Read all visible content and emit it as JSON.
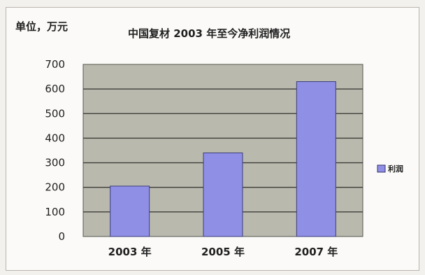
{
  "chart_data": {
    "type": "bar",
    "title": "中国复材 2003 年至今净利润情况",
    "unit_label": "单位，万元",
    "categories": [
      "2003 年",
      "2005 年",
      "2007 年"
    ],
    "series": [
      {
        "name": "利润",
        "values": [
          205,
          340,
          630
        ]
      }
    ],
    "ylim": [
      0,
      700
    ],
    "yticks": [
      0,
      100,
      200,
      300,
      400,
      500,
      600,
      700
    ],
    "grid": true,
    "legend_position": "right",
    "colors": {
      "bar": "#8f8fe6",
      "plot_background": "#b9b9ae",
      "gridline": "#3f3f3a"
    }
  }
}
